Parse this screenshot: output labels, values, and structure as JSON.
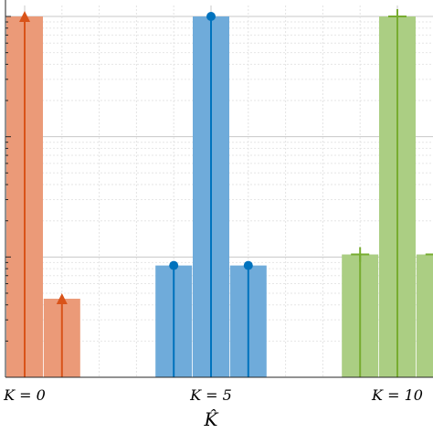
{
  "chart_data": {
    "type": "bar",
    "yscale": "log",
    "grid": true,
    "xlabel": "K̂",
    "tick_labels": [
      "K = 0",
      "K = 5",
      "K = 10"
    ],
    "x": [
      0,
      1,
      2,
      3,
      4,
      5,
      6,
      7,
      8,
      9,
      10,
      11
    ],
    "ylim": [
      1,
      1000
    ],
    "series": [
      {
        "color": "#D95319",
        "bar_fill": "#EB9A78",
        "marker": "triangle",
        "values": [
          1000,
          4.5,
          null,
          null,
          null,
          null,
          null,
          null,
          null,
          null,
          null,
          null
        ]
      },
      {
        "color": "#0072BD",
        "bar_fill": "#6FABDA",
        "marker": "circle",
        "values": [
          null,
          null,
          null,
          null,
          8.5,
          1000,
          8.5,
          null,
          null,
          null,
          null,
          null
        ]
      },
      {
        "color": "#77AC30",
        "bar_fill": "#ABCE83",
        "marker": "plus",
        "values": [
          null,
          null,
          null,
          null,
          null,
          null,
          null,
          null,
          null,
          10.5,
          1000,
          10.5
        ]
      }
    ]
  }
}
